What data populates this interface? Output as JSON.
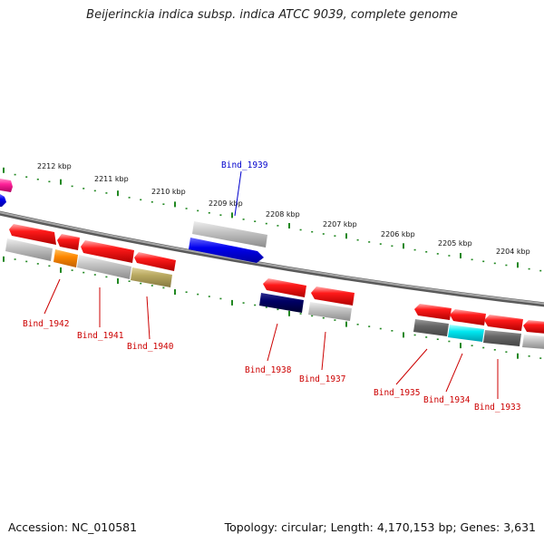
{
  "title": "Beijerinckia indica subsp. indica ATCC 9039, complete genome",
  "accession": "Accession: NC_010581",
  "summary": "Topology: circular; Length: 4,170,153 bp; Genes: 3,631",
  "kbp_labels": [
    "2212 kbp",
    "2211 kbp",
    "2210 kbp",
    "2209 kbp",
    "2208 kbp",
    "2207 kbp",
    "2206 kbp",
    "2205 kbp",
    "2204 kbp"
  ],
  "gene_labels": [
    {
      "text": "Bind_1939",
      "color": "#0000cc"
    },
    {
      "text": "Bind_1942",
      "color": "#cc0000"
    },
    {
      "text": "Bind_1941",
      "color": "#cc0000"
    },
    {
      "text": "Bind_1940",
      "color": "#cc0000"
    },
    {
      "text": "Bind_1938",
      "color": "#cc0000"
    },
    {
      "text": "Bind_1937",
      "color": "#cc0000"
    },
    {
      "text": "Bind_1935",
      "color": "#cc0000"
    },
    {
      "text": "Bind_1934",
      "color": "#cc0000"
    },
    {
      "text": "Bind_1933",
      "color": "#cc0000"
    }
  ],
  "feature_colors": {
    "red": "#ee0000",
    "gray": "#b8b8b8",
    "dark_gray": "#666666",
    "blue": "#0000ee",
    "navy": "#000066",
    "orange": "#ff8800",
    "olive": "#b8a860",
    "cyan": "#00e8f0",
    "magenta": "#ff2299",
    "tick": "#228822",
    "backbone": "#888888"
  }
}
